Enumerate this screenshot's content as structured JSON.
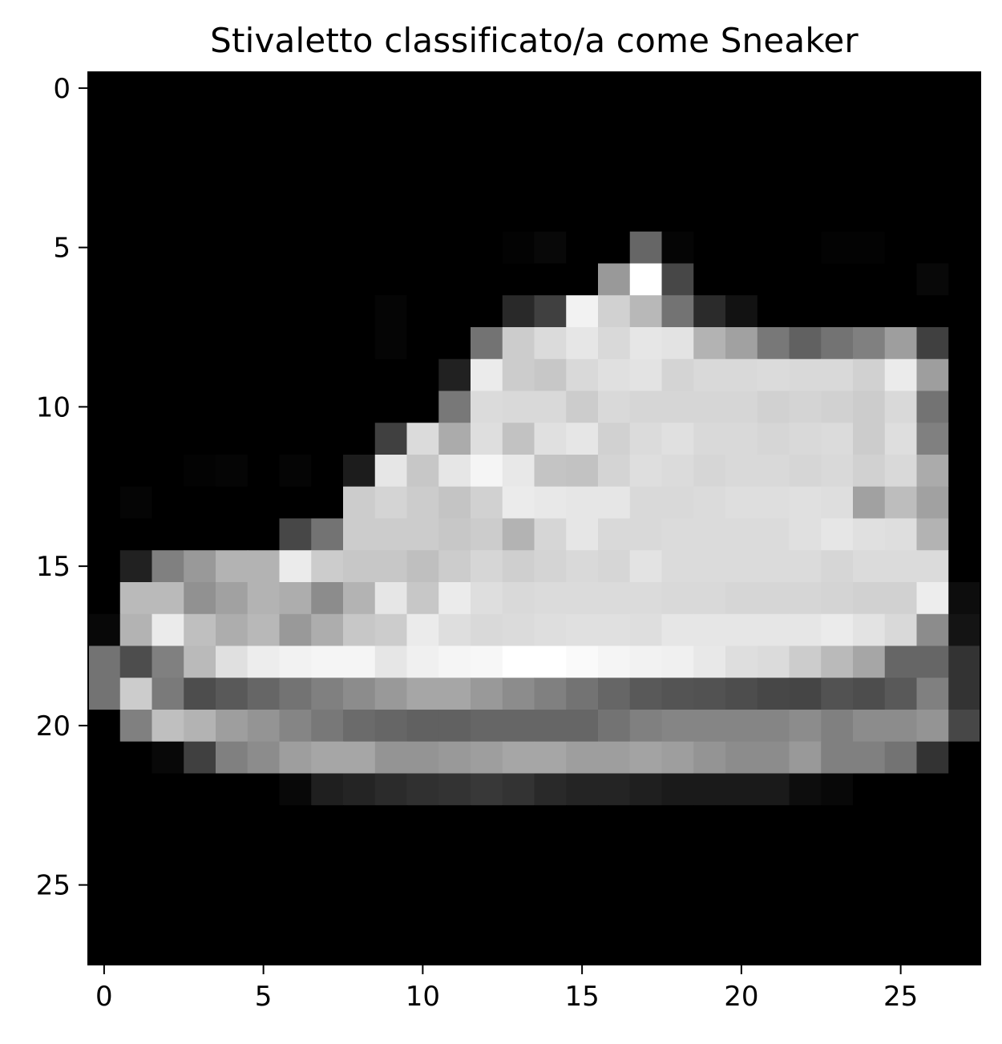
{
  "chart_data": {
    "type": "heatmap",
    "title": "Stivaletto classificato/a come Sneaker",
    "colormap": "gray",
    "value_range": [
      0,
      1
    ],
    "xlim": [
      -0.5,
      27.5
    ],
    "ylim": [
      27.5,
      -0.5
    ],
    "xticks": [
      0,
      5,
      10,
      15,
      20,
      25
    ],
    "yticks": [
      0,
      5,
      10,
      15,
      20,
      25
    ],
    "grid": false,
    "rows": 28,
    "cols": 28,
    "values": [
      [
        0,
        0,
        0,
        0,
        0,
        0,
        0,
        0,
        0,
        0,
        0,
        0,
        0,
        0,
        0,
        0,
        0,
        0,
        0,
        0,
        0,
        0,
        0,
        0,
        0,
        0,
        0,
        0
      ],
      [
        0,
        0,
        0,
        0,
        0,
        0,
        0,
        0,
        0,
        0,
        0,
        0,
        0,
        0,
        0,
        0,
        0,
        0,
        0,
        0,
        0,
        0,
        0,
        0,
        0,
        0,
        0,
        0
      ],
      [
        0,
        0,
        0,
        0,
        0,
        0,
        0,
        0,
        0,
        0,
        0,
        0,
        0,
        0,
        0,
        0,
        0,
        0,
        0,
        0,
        0,
        0,
        0,
        0,
        0,
        0,
        0,
        0
      ],
      [
        0,
        0,
        0,
        0,
        0,
        0,
        0,
        0,
        0,
        0,
        0,
        0,
        0,
        0,
        0,
        0,
        0,
        0,
        0,
        0,
        0,
        0,
        0,
        0,
        0,
        0,
        0,
        0
      ],
      [
        0,
        0,
        0,
        0,
        0,
        0,
        0,
        0,
        0,
        0,
        0,
        0,
        0,
        0,
        0,
        0,
        0,
        0,
        0,
        0,
        0,
        0,
        0,
        0,
        0,
        0,
        0,
        0
      ],
      [
        0,
        0,
        0,
        0,
        0,
        0,
        0,
        0,
        0,
        0,
        0,
        0,
        0,
        0.01,
        0.03,
        0,
        0,
        0.4,
        0.02,
        0,
        0,
        0,
        0,
        0.01,
        0.01,
        0,
        0,
        0
      ],
      [
        0,
        0,
        0,
        0,
        0,
        0,
        0,
        0,
        0,
        0,
        0,
        0,
        0,
        0,
        0,
        0,
        0.6,
        1.0,
        0.28,
        0,
        0,
        0,
        0,
        0,
        0,
        0,
        0.03,
        0
      ],
      [
        0,
        0,
        0,
        0,
        0,
        0,
        0,
        0,
        0,
        0.02,
        0,
        0,
        0,
        0.16,
        0.25,
        0.95,
        0.82,
        0.72,
        0.45,
        0.17,
        0.07,
        0,
        0,
        0,
        0,
        0,
        0,
        0
      ],
      [
        0,
        0,
        0,
        0,
        0,
        0,
        0,
        0,
        0,
        0.02,
        0,
        0,
        0.45,
        0.8,
        0.86,
        0.9,
        0.85,
        0.9,
        0.89,
        0.7,
        0.63,
        0.47,
        0.38,
        0.45,
        0.5,
        0.62,
        0.25,
        0
      ],
      [
        0,
        0,
        0,
        0,
        0,
        0,
        0,
        0,
        0,
        0,
        0,
        0.13,
        0.92,
        0.8,
        0.78,
        0.85,
        0.88,
        0.89,
        0.83,
        0.85,
        0.85,
        0.86,
        0.85,
        0.85,
        0.82,
        0.92,
        0.62,
        0
      ],
      [
        0,
        0,
        0,
        0,
        0,
        0,
        0,
        0,
        0,
        0,
        0,
        0.47,
        0.86,
        0.85,
        0.85,
        0.8,
        0.85,
        0.84,
        0.84,
        0.84,
        0.84,
        0.82,
        0.83,
        0.82,
        0.8,
        0.85,
        0.45,
        0
      ],
      [
        0,
        0,
        0,
        0,
        0,
        0,
        0,
        0,
        0,
        0.25,
        0.86,
        0.67,
        0.87,
        0.76,
        0.88,
        0.9,
        0.82,
        0.86,
        0.88,
        0.85,
        0.85,
        0.84,
        0.85,
        0.86,
        0.8,
        0.87,
        0.5,
        0
      ],
      [
        0,
        0,
        0,
        0.01,
        0.02,
        0,
        0.02,
        0,
        0.11,
        0.9,
        0.78,
        0.9,
        0.96,
        0.91,
        0.77,
        0.76,
        0.83,
        0.87,
        0.86,
        0.84,
        0.85,
        0.85,
        0.84,
        0.85,
        0.82,
        0.85,
        0.67,
        0
      ],
      [
        0,
        0.02,
        0,
        0,
        0,
        0,
        0,
        0,
        0.8,
        0.83,
        0.8,
        0.77,
        0.82,
        0.92,
        0.91,
        0.9,
        0.9,
        0.85,
        0.85,
        0.86,
        0.87,
        0.87,
        0.88,
        0.87,
        0.63,
        0.74,
        0.63,
        0
      ],
      [
        0,
        0,
        0,
        0,
        0,
        0,
        0.28,
        0.45,
        0.8,
        0.8,
        0.8,
        0.78,
        0.8,
        0.7,
        0.84,
        0.9,
        0.85,
        0.85,
        0.86,
        0.86,
        0.86,
        0.86,
        0.88,
        0.9,
        0.88,
        0.87,
        0.7,
        0
      ],
      [
        0,
        0.13,
        0.5,
        0.6,
        0.7,
        0.7,
        0.92,
        0.8,
        0.78,
        0.78,
        0.75,
        0.8,
        0.84,
        0.81,
        0.83,
        0.85,
        0.84,
        0.89,
        0.86,
        0.86,
        0.86,
        0.86,
        0.86,
        0.84,
        0.86,
        0.86,
        0.86,
        0
      ],
      [
        0,
        0.73,
        0.73,
        0.57,
        0.63,
        0.7,
        0.68,
        0.55,
        0.7,
        0.9,
        0.78,
        0.92,
        0.87,
        0.85,
        0.86,
        0.86,
        0.86,
        0.86,
        0.85,
        0.85,
        0.84,
        0.84,
        0.84,
        0.83,
        0.82,
        0.82,
        0.93,
        0.05
      ],
      [
        0.03,
        0.7,
        0.92,
        0.75,
        0.68,
        0.72,
        0.6,
        0.68,
        0.78,
        0.8,
        0.92,
        0.87,
        0.85,
        0.86,
        0.87,
        0.88,
        0.88,
        0.87,
        0.9,
        0.9,
        0.9,
        0.9,
        0.9,
        0.92,
        0.89,
        0.85,
        0.55,
        0.08
      ],
      [
        0.45,
        0.3,
        0.5,
        0.73,
        0.88,
        0.93,
        0.95,
        0.96,
        0.96,
        0.9,
        0.94,
        0.96,
        0.97,
        1.0,
        1.0,
        0.98,
        0.96,
        0.95,
        0.94,
        0.91,
        0.87,
        0.86,
        0.8,
        0.73,
        0.65,
        0.4,
        0.4,
        0.2
      ],
      [
        0.45,
        0.8,
        0.48,
        0.3,
        0.35,
        0.4,
        0.45,
        0.5,
        0.55,
        0.6,
        0.65,
        0.65,
        0.6,
        0.55,
        0.5,
        0.45,
        0.4,
        0.35,
        0.33,
        0.32,
        0.3,
        0.28,
        0.27,
        0.32,
        0.3,
        0.35,
        0.5,
        0.2
      ],
      [
        0,
        0.5,
        0.75,
        0.7,
        0.62,
        0.58,
        0.52,
        0.47,
        0.42,
        0.4,
        0.38,
        0.38,
        0.4,
        0.4,
        0.4,
        0.4,
        0.45,
        0.5,
        0.52,
        0.52,
        0.52,
        0.52,
        0.55,
        0.5,
        0.55,
        0.55,
        0.58,
        0.28
      ],
      [
        0,
        0,
        0.03,
        0.25,
        0.5,
        0.55,
        0.62,
        0.65,
        0.65,
        0.58,
        0.58,
        0.6,
        0.62,
        0.65,
        0.65,
        0.62,
        0.62,
        0.64,
        0.62,
        0.58,
        0.55,
        0.55,
        0.6,
        0.5,
        0.5,
        0.45,
        0.2,
        0
      ],
      [
        0,
        0,
        0,
        0,
        0,
        0,
        0.03,
        0.12,
        0.14,
        0.17,
        0.19,
        0.2,
        0.22,
        0.2,
        0.16,
        0.14,
        0.14,
        0.12,
        0.1,
        0.1,
        0.1,
        0.1,
        0.05,
        0.03,
        0,
        0,
        0,
        0
      ],
      [
        0,
        0,
        0,
        0,
        0,
        0,
        0,
        0,
        0,
        0,
        0,
        0,
        0,
        0,
        0,
        0,
        0,
        0,
        0,
        0,
        0,
        0,
        0,
        0,
        0,
        0,
        0,
        0
      ],
      [
        0,
        0,
        0,
        0,
        0,
        0,
        0,
        0,
        0,
        0,
        0,
        0,
        0,
        0,
        0,
        0,
        0,
        0,
        0,
        0,
        0,
        0,
        0,
        0,
        0,
        0,
        0,
        0
      ],
      [
        0,
        0,
        0,
        0,
        0,
        0,
        0,
        0,
        0,
        0,
        0,
        0,
        0,
        0,
        0,
        0,
        0,
        0,
        0,
        0,
        0,
        0,
        0,
        0,
        0,
        0,
        0,
        0
      ],
      [
        0,
        0,
        0,
        0,
        0,
        0,
        0,
        0,
        0,
        0,
        0,
        0,
        0,
        0,
        0,
        0,
        0,
        0,
        0,
        0,
        0,
        0,
        0,
        0,
        0,
        0,
        0,
        0
      ],
      [
        0,
        0,
        0,
        0,
        0,
        0,
        0,
        0,
        0,
        0,
        0,
        0,
        0,
        0,
        0,
        0,
        0,
        0,
        0,
        0,
        0,
        0,
        0,
        0,
        0,
        0,
        0,
        0
      ]
    ]
  }
}
